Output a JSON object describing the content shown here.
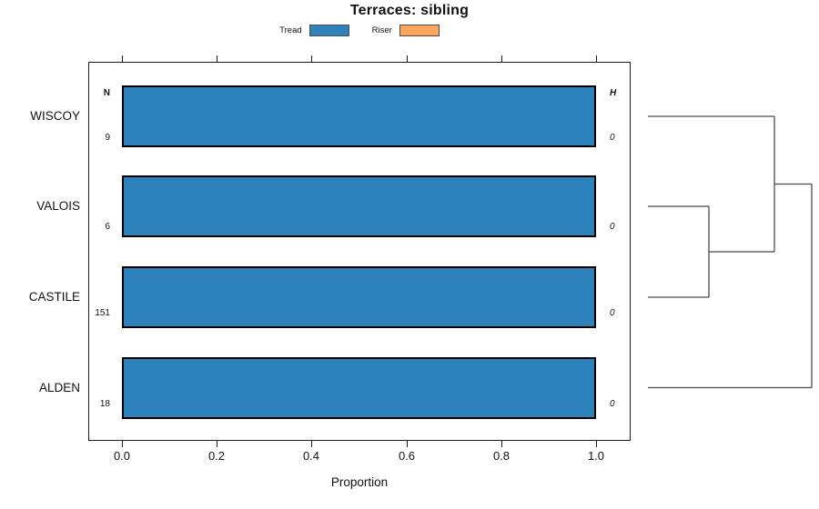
{
  "title": "Terraces: sibling",
  "legend": {
    "items": [
      {
        "label": "Tread",
        "color": "#2E82BB"
      },
      {
        "label": "Riser",
        "color": "#FAA65C"
      }
    ]
  },
  "chart_data": {
    "type": "bar",
    "orientation": "horizontal",
    "title": "Terraces: sibling",
    "xlabel": "Proportion",
    "xlim": [
      0.0,
      1.0
    ],
    "x_ticks": [
      "0.0",
      "0.2",
      "0.4",
      "0.6",
      "0.8",
      "1.0"
    ],
    "grid": false,
    "legend_position": "top",
    "categories": [
      "WISCOY",
      "VALOIS",
      "CASTILE",
      "ALDEN"
    ],
    "series": [
      {
        "name": "Tread",
        "color": "#2E82BB",
        "values": [
          1.0,
          1.0,
          1.0,
          1.0
        ]
      },
      {
        "name": "Riser",
        "color": "#FAA65C",
        "values": [
          0.0,
          0.0,
          0.0,
          0.0
        ]
      }
    ],
    "annotations": {
      "n_header": "N",
      "n_values": [
        "9",
        "6",
        "151",
        "18"
      ],
      "h_header": "H",
      "h_values": [
        "0",
        "0",
        "0",
        "0"
      ]
    },
    "dendrogram": {
      "topology": "((WISCOY,(VALOIS,CASTILE)),ALDEN)",
      "leaf_order": [
        "WISCOY",
        "VALOIS",
        "CASTILE",
        "ALDEN"
      ]
    }
  }
}
